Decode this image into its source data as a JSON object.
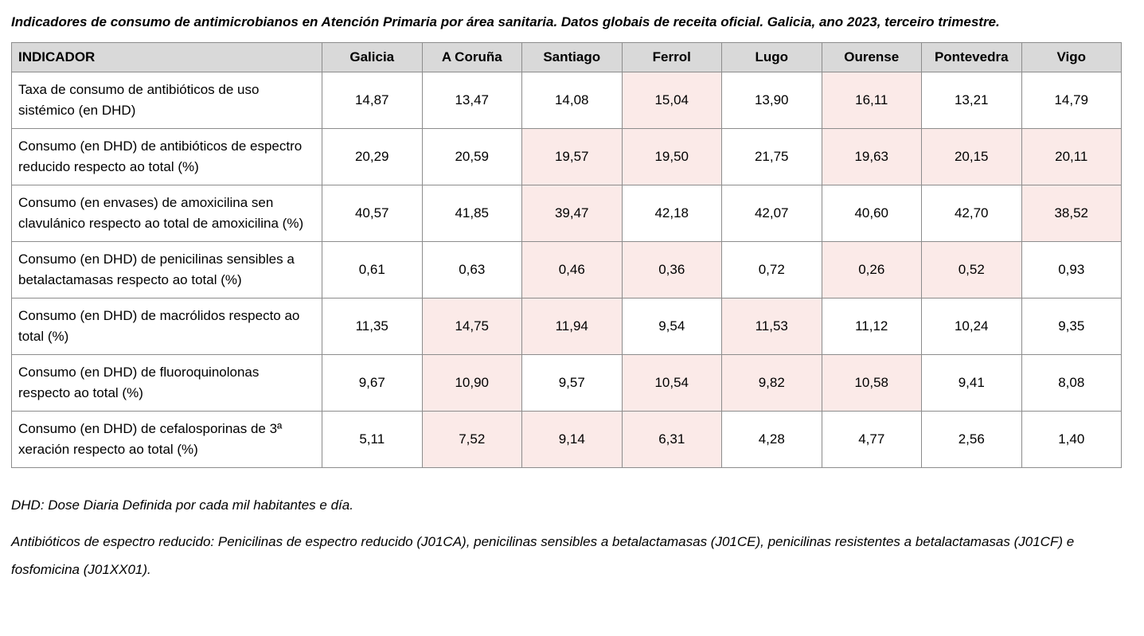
{
  "title": "Indicadores de consumo de antimicrobianos en Atención Primaria por área sanitaria. Datos globais de receita oficial. Galicia, ano 2023, terceiro trimestre.",
  "colors": {
    "header_bg": "#d9d9d9",
    "highlight_bg": "#fbeae8",
    "border_color": "#8c8c8c",
    "text_color": "#000000"
  },
  "table": {
    "columns": [
      "INDICADOR",
      "Galicia",
      "A Coruña",
      "Santiago",
      "Ferrol",
      "Lugo",
      "Ourense",
      "Pontevedra",
      "Vigo"
    ],
    "rows": [
      {
        "indicator": "Taxa de consumo de antibióticos de uso sistémico (en DHD)",
        "values": [
          "14,87",
          "13,47",
          "14,08",
          "15,04",
          "13,90",
          "16,11",
          "13,21",
          "14,79"
        ],
        "highlighted": [
          false,
          false,
          false,
          true,
          false,
          true,
          false,
          false
        ]
      },
      {
        "indicator": "Consumo (en DHD) de antibióticos de espectro reducido respecto ao total (%)",
        "values": [
          "20,29",
          "20,59",
          "19,57",
          "19,50",
          "21,75",
          "19,63",
          "20,15",
          "20,11"
        ],
        "highlighted": [
          false,
          false,
          true,
          true,
          false,
          true,
          true,
          true
        ]
      },
      {
        "indicator": "Consumo (en envases) de amoxicilina sen clavulánico respecto ao total de amoxicilina (%)",
        "values": [
          "40,57",
          "41,85",
          "39,47",
          "42,18",
          "42,07",
          "40,60",
          "42,70",
          "38,52"
        ],
        "highlighted": [
          false,
          false,
          true,
          false,
          false,
          false,
          false,
          true
        ]
      },
      {
        "indicator": "Consumo (en DHD) de penicilinas sensibles a betalactamasas respecto ao total (%)",
        "values": [
          "0,61",
          "0,63",
          "0,46",
          "0,36",
          "0,72",
          "0,26",
          "0,52",
          "0,93"
        ],
        "highlighted": [
          false,
          false,
          true,
          true,
          false,
          true,
          true,
          false
        ]
      },
      {
        "indicator": "Consumo (en DHD) de macrólidos respecto ao total (%)",
        "values": [
          "11,35",
          "14,75",
          "11,94",
          "9,54",
          "11,53",
          "11,12",
          "10,24",
          "9,35"
        ],
        "highlighted": [
          false,
          true,
          true,
          false,
          true,
          false,
          false,
          false
        ]
      },
      {
        "indicator": "Consumo (en DHD) de fluoroquinolonas respecto ao total (%)",
        "values": [
          "9,67",
          "10,90",
          "9,57",
          "10,54",
          "9,82",
          "10,58",
          "9,41",
          "8,08"
        ],
        "highlighted": [
          false,
          true,
          false,
          true,
          true,
          true,
          false,
          false
        ]
      },
      {
        "indicator": "Consumo (en DHD) de cefalosporinas de 3ª xeración respecto ao total (%)",
        "values": [
          "5,11",
          "7,52",
          "9,14",
          "6,31",
          "4,28",
          "4,77",
          "2,56",
          "1,40"
        ],
        "highlighted": [
          false,
          true,
          true,
          true,
          false,
          false,
          false,
          false
        ]
      }
    ]
  },
  "footnotes": [
    "DHD: Dose Diaria Definida por cada mil habitantes e día.",
    "Antibióticos de espectro reducido: Penicilinas de espectro reducido (J01CA), penicilinas sensibles a betalactamasas (J01CE), penicilinas resistentes a betalactamasas (J01CF) e fosfomicina (J01XX01)."
  ]
}
